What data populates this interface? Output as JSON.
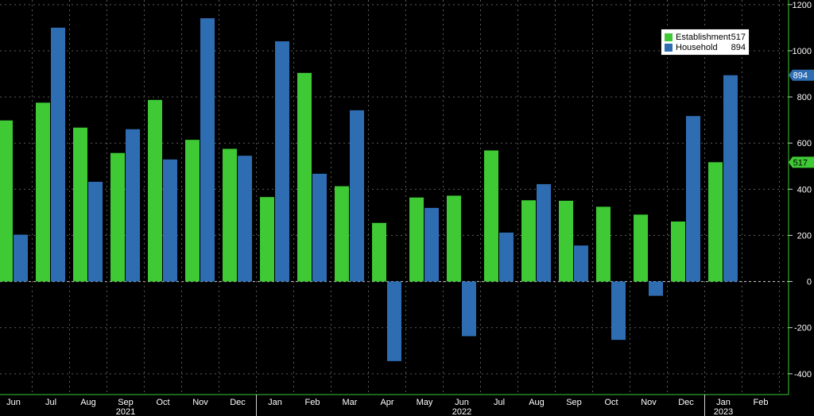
{
  "chart_data": {
    "type": "bar",
    "categories": [
      "Jun",
      "Jul",
      "Aug",
      "Sep",
      "Oct",
      "Nov",
      "Dec",
      "Jan",
      "Feb",
      "Mar",
      "Apr",
      "May",
      "Jun",
      "Jul",
      "Aug",
      "Sep",
      "Oct",
      "Nov",
      "Dec",
      "Jan",
      "Feb"
    ],
    "year_labels": [
      {
        "label": "2021",
        "category_index": 3
      },
      {
        "label": "2022",
        "category_index": 12
      },
      {
        "label": "2023",
        "category_index": 19
      }
    ],
    "series": [
      {
        "name": "Establishment",
        "color": "#3ec935",
        "values": [
          698,
          775,
          667,
          557,
          787,
          614,
          575,
          366,
          904,
          413,
          254,
          364,
          372,
          568,
          352,
          350,
          324,
          290,
          260,
          517,
          null
        ]
      },
      {
        "name": "Household",
        "color": "#2f6db3",
        "values": [
          203,
          1100,
          432,
          660,
          529,
          1141,
          545,
          1041,
          467,
          742,
          -345,
          319,
          -237,
          212,
          422,
          156,
          -253,
          -62,
          717,
          894,
          null
        ]
      }
    ],
    "legend": [
      {
        "name": "Establishment",
        "value": "517",
        "color": "#3ec935"
      },
      {
        "name": "Household",
        "value": "894",
        "color": "#2f6db3"
      }
    ],
    "last_value_tags": [
      {
        "text": "894",
        "value": 894,
        "color": "#2f6db3"
      },
      {
        "text": "517",
        "value": 517,
        "color": "#3ec935"
      }
    ],
    "ylim": [
      -490,
      1220
    ],
    "yticks": [
      -400,
      -200,
      0,
      200,
      400,
      600,
      800,
      1000,
      1200
    ],
    "y_axis_side": "right",
    "grid": true,
    "legend_position": "top-right",
    "title": "",
    "xlabel": "",
    "ylabel": ""
  }
}
